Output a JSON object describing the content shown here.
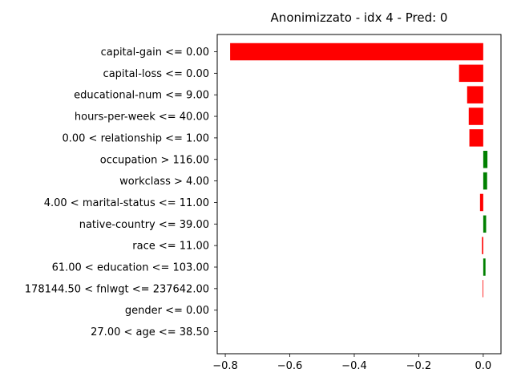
{
  "chart_data": {
    "type": "bar",
    "orientation": "horizontal",
    "title": "Anonimizzato - idx 4 - Pred: 0",
    "xlabel": "",
    "ylabel": "",
    "xlim": [
      -0.825,
      0.055
    ],
    "xticks": [
      -0.8,
      -0.6,
      -0.4,
      -0.2,
      0.0
    ],
    "xtick_labels": [
      "−0.8",
      "−0.6",
      "−0.4",
      "−0.2",
      "0.0"
    ],
    "grid": false,
    "legend": "none",
    "colors": {
      "negative": "#ff0000",
      "positive": "#008000"
    },
    "categories": [
      "capital-gain <= 0.00",
      "capital-loss <= 0.00",
      "educational-num <= 9.00",
      "hours-per-week <= 40.00",
      "0.00 < relationship <= 1.00",
      "occupation > 116.00",
      "workclass > 4.00",
      "4.00 < marital-status <= 11.00",
      "native-country <= 39.00",
      "race <= 11.00",
      "61.00 < education <= 103.00",
      "178144.50 < fnlwgt <= 237642.00",
      "gender <= 0.00",
      "27.00 < age <= 38.50"
    ],
    "values": [
      -0.785,
      -0.075,
      -0.05,
      -0.045,
      -0.043,
      0.013,
      0.012,
      -0.01,
      0.009,
      -0.004,
      0.007,
      -0.002,
      0.0,
      0.0
    ]
  }
}
